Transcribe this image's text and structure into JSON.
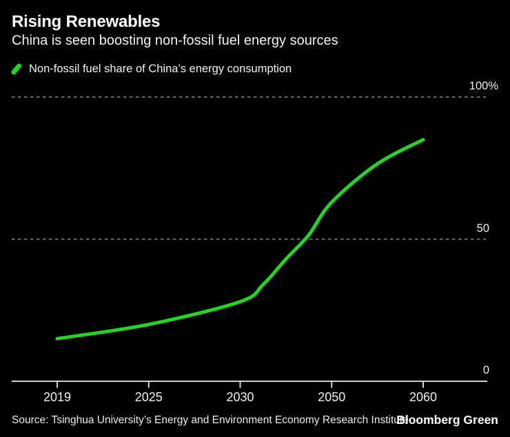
{
  "header": {
    "title": "Rising Renewables",
    "subtitle": "China is seen boosting non-fossil fuel energy sources"
  },
  "legend": {
    "label": "Non-fossil fuel share of China’s energy consumption"
  },
  "chart_data": {
    "type": "line",
    "title": "Rising Renewables",
    "subtitle": "China is seen boosting non-fossil fuel energy sources",
    "unit": "%",
    "ylim": [
      0,
      100
    ],
    "grid": "horizontal dashed gridlines at 50 and 100, solid baseline at 0",
    "legend_position": "top-left",
    "x_axis_note": "tick years are equally spaced (category-style axis despite unequal year gaps)",
    "x_ticks": [
      {
        "year": 2019,
        "label": "2019"
      },
      {
        "year": 2025,
        "label": "2025"
      },
      {
        "year": 2030,
        "label": "2030"
      },
      {
        "year": 2050,
        "label": "2050"
      },
      {
        "year": 2060,
        "label": "2060"
      }
    ],
    "y_ticks": [
      {
        "value": 0,
        "label": "0"
      },
      {
        "value": 50,
        "label": "50"
      },
      {
        "value": 100,
        "label": "100%"
      }
    ],
    "series": [
      {
        "name": "Non-fossil fuel share of China’s energy consumption",
        "color": "#24d624",
        "points": [
          {
            "year": 2019,
            "value": 15
          },
          {
            "year": 2025,
            "value": 20
          },
          {
            "year": 2030,
            "value": 28
          },
          {
            "year": 2035,
            "value": 34
          },
          {
            "year": 2040,
            "value": 43
          },
          {
            "year": 2045,
            "value": 51.5
          },
          {
            "year": 2050,
            "value": 63
          },
          {
            "year": 2055,
            "value": 76.5
          },
          {
            "year": 2060,
            "value": 85
          }
        ]
      }
    ]
  },
  "footer": {
    "source": "Source: Tsinghua University’s Energy and Environment Economy Research Institute",
    "brand": "Bloomberg Green"
  },
  "colors": {
    "background": "#000000",
    "line": "#24d624",
    "grid": "#8a8a8a",
    "axis": "#d4d4d4",
    "text": "#f2f2f2"
  }
}
